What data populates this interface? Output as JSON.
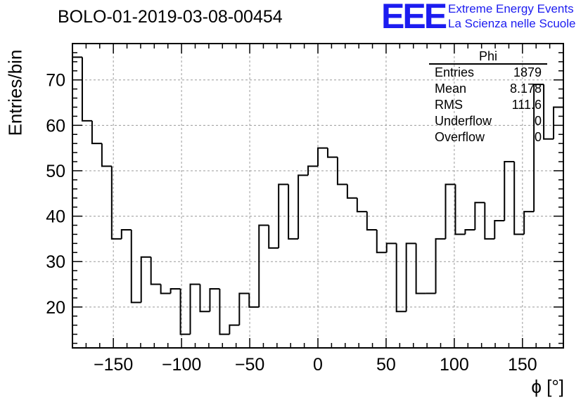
{
  "header": {
    "title": "BOLO-01-2019-03-08-00454"
  },
  "logo": {
    "mark": "EEE",
    "line1": "Extreme Energy Events",
    "line2": "La Scienza nelle Scuole",
    "color": "#1c1cf0"
  },
  "stats": {
    "title": "Phi",
    "rows": [
      {
        "label": "Entries",
        "value": "1879"
      },
      {
        "label": "Mean",
        "value": "8.178"
      },
      {
        "label": "RMS",
        "value": "111.6"
      },
      {
        "label": "Underflow",
        "value": "0"
      },
      {
        "label": "Overflow",
        "value": "0"
      }
    ]
  },
  "chart_data": {
    "type": "bar",
    "style": "step-histogram",
    "title": "BOLO-01-2019-03-08-00454",
    "xlabel": "ϕ [°]",
    "ylabel": "Entries/bin",
    "xlim": [
      -180,
      180
    ],
    "ylim": [
      11,
      78
    ],
    "bin_width": 7.2,
    "grid": true,
    "xticks": [
      -150,
      -100,
      -50,
      0,
      50,
      100,
      150
    ],
    "xtick_labels": [
      "−150",
      "−100",
      "−50",
      "0",
      "50",
      "100",
      "150"
    ],
    "yticks": [
      20,
      30,
      40,
      50,
      60,
      70
    ],
    "ytick_labels": [
      "20",
      "30",
      "40",
      "50",
      "60",
      "70"
    ],
    "values": [
      75,
      61,
      56,
      51,
      35,
      37,
      21,
      31,
      25,
      23,
      24,
      14,
      25,
      19,
      24,
      14,
      16,
      23,
      20,
      38,
      33,
      47,
      35,
      49,
      51,
      55,
      53,
      47,
      44,
      41,
      37,
      32,
      34,
      19,
      34,
      23,
      23,
      35,
      47,
      36,
      37,
      43,
      35,
      39,
      52,
      36,
      41,
      69,
      57,
      64
    ],
    "line_color": "#000000"
  }
}
